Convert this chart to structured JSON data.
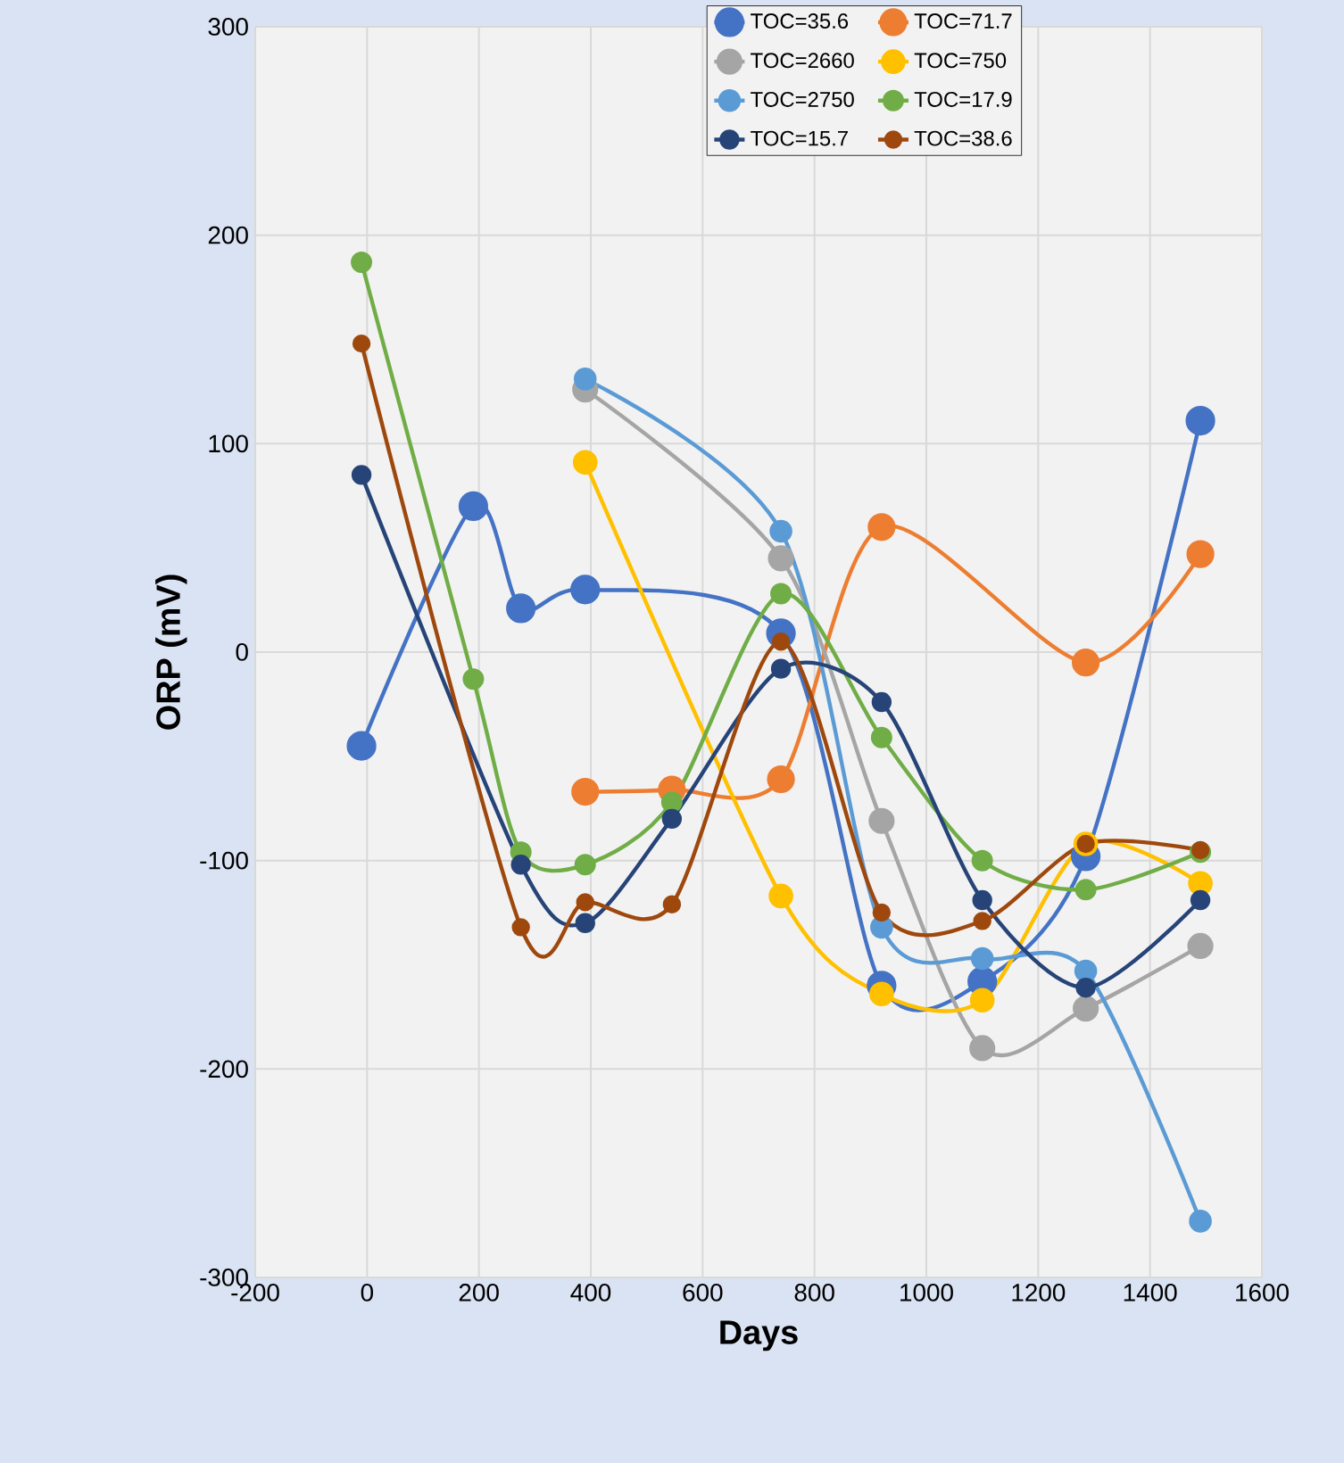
{
  "chart_data": {
    "type": "line",
    "xlabel": "Days",
    "ylabel": "ORP (mV)",
    "xlim": [
      -200,
      1600
    ],
    "xticks": [
      -200,
      0,
      200,
      400,
      600,
      800,
      1000,
      1200,
      1400,
      1600
    ],
    "ylim": [
      -300,
      300
    ],
    "yticks": [
      -300,
      -200,
      -100,
      0,
      100,
      200,
      300
    ],
    "grid": true,
    "legend": "top",
    "marker": "circle",
    "line_style": "solid",
    "series": [
      {
        "name": "TOC=35.6",
        "color": "#4472c4",
        "x": [
          -10,
          190,
          275,
          390,
          740,
          920,
          1100,
          1285,
          1490
        ],
        "values": [
          -45,
          70,
          21,
          30,
          9,
          -160,
          -158,
          -98,
          111
        ]
      },
      {
        "name": "TOC=71.7",
        "color": "#ed7d31",
        "x": [
          390,
          545,
          740,
          920,
          1285,
          1490
        ],
        "values": [
          -67,
          -66,
          -61,
          60,
          -5,
          47
        ]
      },
      {
        "name": "TOC=2660",
        "color": "#a5a5a5",
        "x": [
          390,
          740,
          920,
          1100,
          1285,
          1490
        ],
        "values": [
          126,
          45,
          -81,
          -190,
          -171,
          -141
        ]
      },
      {
        "name": "TOC=750",
        "color": "#ffc000",
        "x": [
          390,
          740,
          920,
          1100,
          1285,
          1490
        ],
        "values": [
          91,
          -117,
          -164,
          -167,
          -92,
          -111
        ]
      },
      {
        "name": "TOC=2750",
        "color": "#5b9bd5",
        "x": [
          390,
          740,
          920,
          1100,
          1285,
          1490
        ],
        "values": [
          131,
          58,
          -132,
          -147,
          -153,
          -273
        ]
      },
      {
        "name": "TOC=17.9",
        "color": "#70ad47",
        "x": [
          -10,
          190,
          275,
          390,
          545,
          740,
          920,
          1100,
          1285,
          1490
        ],
        "values": [
          187,
          -13,
          -96,
          -102,
          -72,
          28,
          -41,
          -100,
          -114,
          -96
        ]
      },
      {
        "name": "TOC=15.7",
        "color": "#264478",
        "x": [
          -10,
          275,
          390,
          545,
          740,
          920,
          1100,
          1285,
          1490
        ],
        "values": [
          85,
          -102,
          -130,
          -80,
          -8,
          -24,
          -119,
          -161,
          -119
        ]
      },
      {
        "name": "TOC=38.6",
        "color": "#9e480e",
        "x": [
          -10,
          275,
          390,
          545,
          740,
          920,
          1100,
          1285,
          1490
        ],
        "values": [
          148,
          -132,
          -120,
          -121,
          5,
          -125,
          -129,
          -92,
          -95
        ]
      }
    ]
  }
}
